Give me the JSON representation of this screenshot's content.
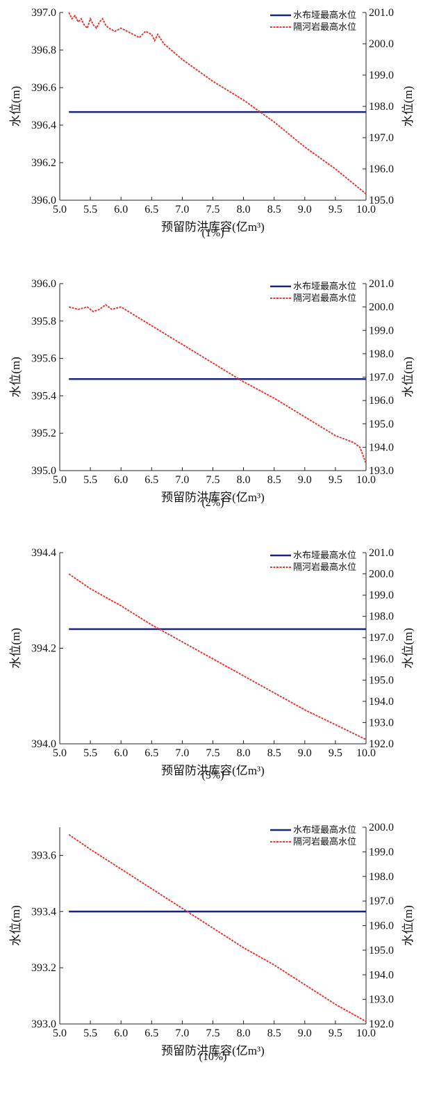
{
  "chart_data": [
    {
      "type": "line",
      "caption": "(1%)",
      "xlabel": "预留防洪库容(亿m³)",
      "ylabel_left": "水位(m)",
      "ylabel_right": "水位(m)",
      "xlim": [
        5.0,
        10.0
      ],
      "xticks": [
        "5.0",
        "5.5",
        "6.0",
        "6.5",
        "7.0",
        "7.5",
        "8.0",
        "8.5",
        "9.0",
        "9.5",
        "10.0"
      ],
      "ylim_left": [
        396.0,
        397.0
      ],
      "yticks_left": [
        "396.0",
        "396.2",
        "396.4",
        "396.6",
        "396.8",
        "397.0"
      ],
      "ylim_right": [
        195.0,
        201.0
      ],
      "yticks_right": [
        "195.0",
        "196.0",
        "197.0",
        "198.0",
        "199.0",
        "200.0",
        "201.0"
      ],
      "grid": false,
      "legend_position": "top-right",
      "series": [
        {
          "name": "水布垭最高水位",
          "axis": "left",
          "color": "#1a237e",
          "style": "solid",
          "x": [
            5.15,
            10.0
          ],
          "y": [
            396.47,
            396.47
          ]
        },
        {
          "name": "隔河岩最高水位",
          "axis": "right",
          "color": "#e53935",
          "style": "dashed",
          "x": [
            5.15,
            5.2,
            5.25,
            5.3,
            5.35,
            5.4,
            5.45,
            5.5,
            5.55,
            5.6,
            5.65,
            5.7,
            5.75,
            5.8,
            5.9,
            6.0,
            6.1,
            6.2,
            6.3,
            6.4,
            6.5,
            6.55,
            6.6,
            6.7,
            7.0,
            7.5,
            8.0,
            8.5,
            9.0,
            9.5,
            10.0
          ],
          "y": [
            201.0,
            200.8,
            200.9,
            200.7,
            200.8,
            200.6,
            200.5,
            200.8,
            200.6,
            200.5,
            200.7,
            200.8,
            200.6,
            200.5,
            200.4,
            200.5,
            200.4,
            200.3,
            200.2,
            200.4,
            200.3,
            200.1,
            200.3,
            200.0,
            199.5,
            198.8,
            198.2,
            197.5,
            196.7,
            196.0,
            195.2
          ]
        }
      ]
    },
    {
      "type": "line",
      "caption": "(2%)",
      "xlabel": "预留防洪库容(亿m³)",
      "ylabel_left": "水位(m)",
      "ylabel_right": "水位(m)",
      "xlim": [
        5.0,
        10.0
      ],
      "xticks": [
        "5.0",
        "5.5",
        "6.0",
        "6.5",
        "7.0",
        "7.5",
        "8.0",
        "8.5",
        "9.0",
        "9.5",
        "10.0"
      ],
      "ylim_left": [
        395.0,
        396.0
      ],
      "yticks_left": [
        "395.0",
        "395.2",
        "395.4",
        "395.6",
        "395.8",
        "396.0"
      ],
      "ylim_right": [
        193.0,
        201.0
      ],
      "yticks_right": [
        "193.0",
        "194.0",
        "195.0",
        "196.0",
        "197.0",
        "198.0",
        "199.0",
        "200.0",
        "201.0"
      ],
      "grid": false,
      "legend_position": "top-right",
      "series": [
        {
          "name": "水布垭最高水位",
          "axis": "left",
          "color": "#1a237e",
          "style": "solid",
          "x": [
            5.15,
            10.0
          ],
          "y": [
            395.49,
            395.49
          ]
        },
        {
          "name": "隔河岩最高水位",
          "axis": "right",
          "color": "#e53935",
          "style": "dashed",
          "x": [
            5.15,
            5.3,
            5.45,
            5.55,
            5.65,
            5.75,
            5.85,
            6.0,
            6.5,
            7.0,
            7.5,
            8.0,
            8.5,
            9.0,
            9.5,
            9.8,
            9.9,
            10.0
          ],
          "y": [
            200.0,
            199.9,
            200.0,
            199.8,
            199.9,
            200.1,
            199.9,
            200.0,
            199.2,
            198.4,
            197.6,
            196.8,
            196.1,
            195.3,
            194.5,
            194.2,
            194.0,
            193.3
          ]
        }
      ]
    },
    {
      "type": "line",
      "caption": "(5%)",
      "xlabel": "预留防洪库容(亿m³)",
      "ylabel_left": "水位(m)",
      "ylabel_right": "水位(m)",
      "xlim": [
        5.0,
        10.0
      ],
      "xticks": [
        "5.0",
        "5.5",
        "6.0",
        "6.5",
        "7.0",
        "7.5",
        "8.0",
        "8.5",
        "9.0",
        "9.5",
        "10.0"
      ],
      "ylim_left": [
        394.0,
        394.4
      ],
      "yticks_left": [
        "394.0",
        "394.2",
        "394.4"
      ],
      "ylim_right": [
        192.0,
        201.0
      ],
      "yticks_right": [
        "192.0",
        "193.0",
        "194.0",
        "195.0",
        "196.0",
        "197.0",
        "198.0",
        "199.0",
        "200.0",
        "201.0"
      ],
      "grid": false,
      "legend_position": "top-right",
      "series": [
        {
          "name": "水布垭最高水位",
          "axis": "left",
          "color": "#1a237e",
          "style": "solid",
          "x": [
            5.15,
            10.0
          ],
          "y": [
            394.24,
            394.24
          ]
        },
        {
          "name": "隔河岩最高水位",
          "axis": "right",
          "color": "#e53935",
          "style": "dashed",
          "x": [
            5.15,
            5.5,
            6.0,
            6.5,
            7.0,
            7.5,
            8.0,
            8.5,
            9.0,
            9.5,
            10.0
          ],
          "y": [
            200.0,
            199.3,
            198.5,
            197.6,
            196.8,
            196.0,
            195.2,
            194.4,
            193.6,
            192.9,
            192.2
          ]
        }
      ]
    },
    {
      "type": "line",
      "caption": "(10%)",
      "xlabel": "预留防洪库容(亿m³)",
      "ylabel_left": "水位(m)",
      "ylabel_right": "水位(m)",
      "xlim": [
        5.0,
        10.0
      ],
      "xticks": [
        "5.0",
        "5.5",
        "6.0",
        "6.5",
        "7.0",
        "7.5",
        "8.0",
        "8.5",
        "9.0",
        "9.5",
        "10.0"
      ],
      "ylim_left": [
        393.0,
        393.7
      ],
      "yticks_left": [
        "393.0",
        "393.2",
        "393.4",
        "393.6"
      ],
      "ylim_right": [
        192.0,
        200.0
      ],
      "yticks_right": [
        "192.0",
        "193.0",
        "194.0",
        "195.0",
        "196.0",
        "197.0",
        "198.0",
        "199.0",
        "200.0"
      ],
      "grid": false,
      "legend_position": "top-right",
      "series": [
        {
          "name": "水布垭最高水位",
          "axis": "left",
          "color": "#1a237e",
          "style": "solid",
          "x": [
            5.15,
            10.0
          ],
          "y": [
            393.4,
            393.4
          ]
        },
        {
          "name": "隔河岩最高水位",
          "axis": "right",
          "color": "#e53935",
          "style": "dashed",
          "x": [
            5.15,
            5.5,
            6.0,
            6.5,
            7.0,
            7.5,
            8.0,
            8.5,
            9.0,
            9.5,
            10.0
          ],
          "y": [
            199.7,
            199.1,
            198.3,
            197.5,
            196.7,
            195.9,
            195.1,
            194.4,
            193.6,
            192.8,
            192.1
          ]
        }
      ]
    }
  ]
}
